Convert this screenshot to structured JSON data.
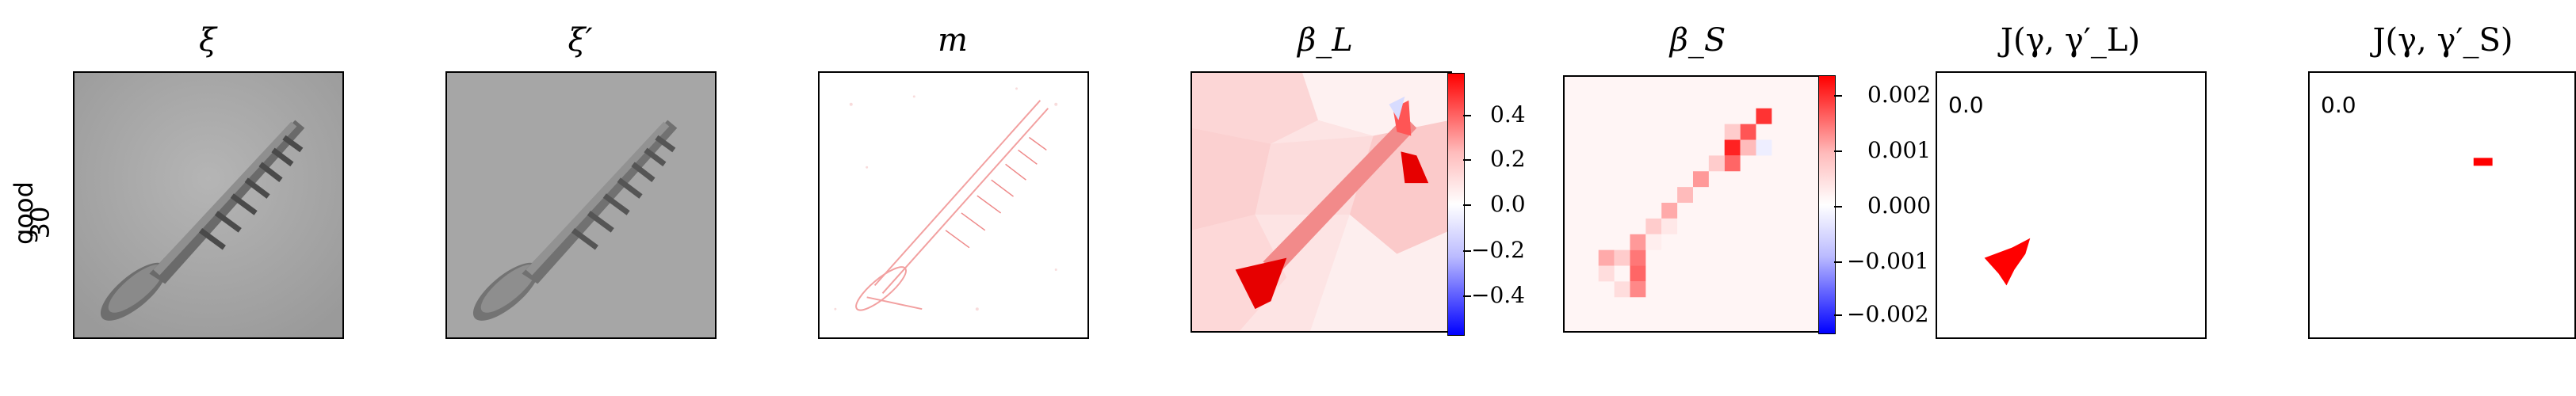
{
  "row_label": {
    "line1": "good",
    "line2": "30"
  },
  "panels": {
    "xi": {
      "title": "ξ"
    },
    "xi_prime": {
      "title": "ξ′"
    },
    "m": {
      "title": "m"
    },
    "beta_L": {
      "title": "β_L",
      "colorbar": {
        "ticks": [
          "0.4",
          "0.2",
          "0.0",
          "−0.2",
          "−0.4"
        ],
        "min": -0.5,
        "max": 0.5,
        "high_color": "#ff0000",
        "low_color": "#0000ff"
      }
    },
    "beta_S": {
      "title": "β_S",
      "colorbar": {
        "ticks": [
          "0.002",
          "0.001",
          "0.000",
          "−0.001",
          "−0.002"
        ],
        "min": -0.0023,
        "max": 0.0023,
        "high_color": "#ff0000",
        "low_color": "#0000ff"
      }
    },
    "J_L": {
      "title": "J(γ, γ′_L)",
      "value": "0.0",
      "mask_color": "#ff0000"
    },
    "J_S": {
      "title": "J(γ, γ′_S)",
      "value": "0.0",
      "mask_color": "#ff0000"
    }
  }
}
